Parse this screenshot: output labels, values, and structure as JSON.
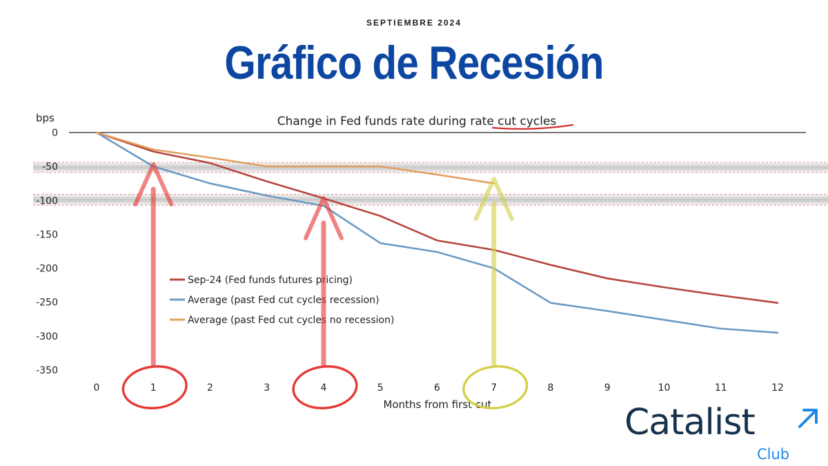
{
  "header": {
    "date": "SEPTIEMBRE 2024",
    "title": "Gráfico de Recesión"
  },
  "brand": {
    "name": "Catalist",
    "sub": "Club",
    "color_dark": "#17324d",
    "color_accent": "#1e88e5",
    "icon": "arrow-up-right-icon"
  },
  "chart_data": {
    "type": "line",
    "title": "Change in Fed funds rate during rate cut cycles",
    "xlabel": "Months from first cut",
    "ylabel": "bps",
    "x": [
      0,
      1,
      2,
      3,
      4,
      5,
      6,
      7,
      8,
      9,
      10,
      11,
      12
    ],
    "xlim": [
      0,
      12
    ],
    "ylim": [
      -350,
      0
    ],
    "yticks": [
      0,
      -50,
      -100,
      -150,
      -200,
      -250,
      -300,
      -350
    ],
    "grid": false,
    "legend_position": "center-left",
    "series": [
      {
        "name": "Sep-24 (Fed funds futures pricing)",
        "color": "#b5453e",
        "x": [
          0,
          1,
          2,
          3,
          4,
          5,
          6,
          7,
          8,
          9,
          10,
          11,
          12
        ],
        "values": [
          0,
          -28,
          -45,
          -72,
          -97,
          -123,
          -159,
          -173,
          -195,
          -215,
          -228,
          -240,
          -251
        ]
      },
      {
        "name": "Average (past Fed cut cycles recession)",
        "color": "#6b9ac4",
        "x": [
          0,
          1,
          2,
          3,
          4,
          5,
          6,
          7,
          8,
          9,
          10,
          11,
          12
        ],
        "values": [
          0,
          -50,
          -75,
          -93,
          -108,
          -163,
          -176,
          -200,
          -251,
          -263,
          -276,
          -289,
          -295
        ]
      },
      {
        "name": "Average (past Fed cut cycles no recession)",
        "color": "#e0a060",
        "x": [
          0,
          1,
          2,
          3,
          4,
          5,
          6,
          7
        ],
        "values": [
          0,
          -25,
          -37,
          -50,
          -50,
          -50,
          -62,
          -75
        ]
      }
    ],
    "highlight_bands": [
      {
        "from": -44,
        "to": -59,
        "color": "#bdbdbd"
      },
      {
        "from": -91,
        "to": -107,
        "color": "#bdbdbd"
      }
    ],
    "highlighted_months": [
      {
        "x": 1,
        "color": "#e53935"
      },
      {
        "x": 4,
        "color": "#e53935"
      },
      {
        "x": 7,
        "color": "#d4d04a"
      }
    ]
  }
}
